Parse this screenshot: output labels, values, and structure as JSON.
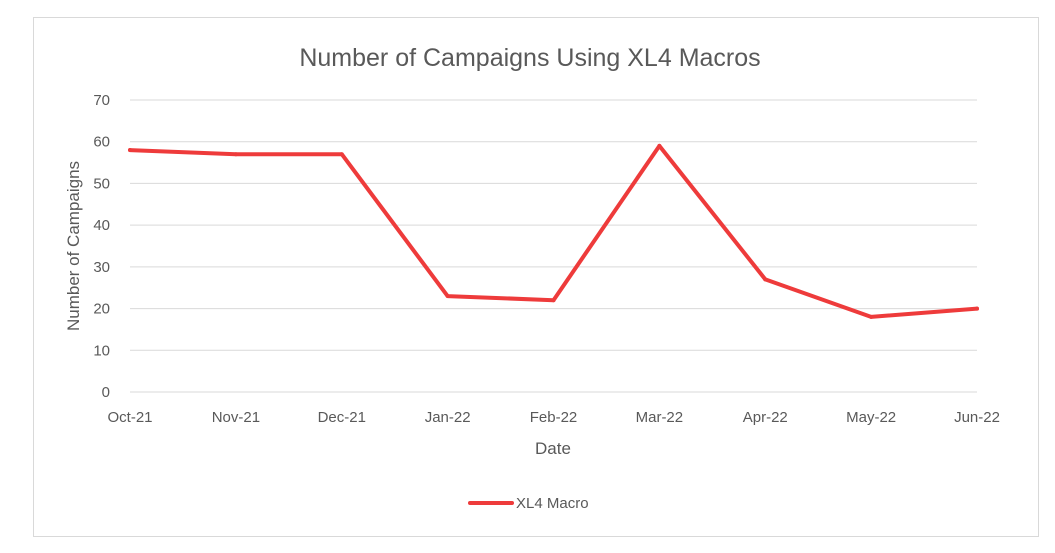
{
  "chart_data": {
    "type": "line",
    "title": "Number of Campaigns Using XL4 Macros",
    "xlabel": "Date",
    "ylabel": "Number of Campaigns",
    "categories": [
      "Oct-21",
      "Nov-21",
      "Dec-21",
      "Jan-22",
      "Feb-22",
      "Mar-22",
      "Apr-22",
      "May-22",
      "Jun-22"
    ],
    "series": [
      {
        "name": "XL4 Macro",
        "values": [
          58,
          57,
          57,
          23,
          22,
          59,
          27,
          18,
          20
        ],
        "color": "#ee3b3b"
      }
    ],
    "ylim": [
      0,
      70
    ],
    "yticks": [
      0,
      10,
      20,
      30,
      40,
      50,
      60,
      70
    ],
    "grid": true,
    "legend_position": "bottom"
  }
}
